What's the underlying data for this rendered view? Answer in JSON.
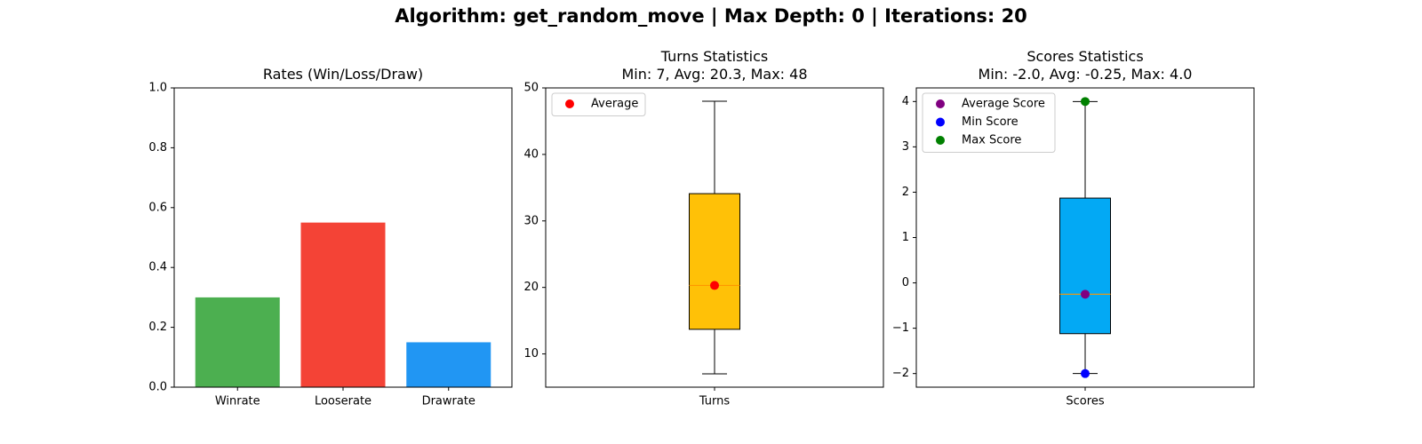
{
  "figure_title": "Algorithm: get_random_move | Max Depth: 0 | Iterations: 20",
  "colors": {
    "winrate": "#4caf50",
    "looserate": "#f44336",
    "drawrate": "#2196f3",
    "turns_box": "#ffc107",
    "scores_box": "#03a9f4",
    "median_line": "#ff9800",
    "average_marker": "#ff0000",
    "average_score_marker": "#800080",
    "min_score_marker": "#0000ff",
    "max_score_marker": "#008000"
  },
  "chart_data": [
    {
      "type": "bar",
      "title": "Rates (Win/Loss/Draw)",
      "categories": [
        "Winrate",
        "Looserate",
        "Drawrate"
      ],
      "values": [
        0.3,
        0.55,
        0.15
      ],
      "bar_colors": [
        "#4caf50",
        "#f44336",
        "#2196f3"
      ],
      "ylim": [
        0,
        1.0
      ],
      "yticks": [
        0.0,
        0.2,
        0.4,
        0.6,
        0.8,
        1.0
      ],
      "ytick_labels": [
        "0.0",
        "0.2",
        "0.4",
        "0.6",
        "0.8",
        "1.0"
      ],
      "grid": false
    },
    {
      "type": "box",
      "title": "Turns Statistics",
      "subtitle": "Min: 7, Avg: 20.3, Max: 48",
      "category": "Turns",
      "box": {
        "whisker_low": 7,
        "q1": 13.7,
        "median": 20.3,
        "q3": 34.1,
        "whisker_high": 48
      },
      "markers": [
        {
          "name": "Average",
          "value": 20.3,
          "color": "#ff0000"
        }
      ],
      "ylim": [
        5,
        50
      ],
      "yticks": [
        10,
        20,
        30,
        40,
        50
      ],
      "ytick_labels": [
        "10",
        "20",
        "30",
        "40",
        "50"
      ],
      "legend": [
        "Average"
      ],
      "legend_position": "upper-left",
      "box_color": "#ffc107",
      "grid": false
    },
    {
      "type": "box",
      "title": "Scores Statistics",
      "subtitle": "Min: -2.0, Avg: -0.25, Max: 4.0",
      "category": "Scores",
      "box": {
        "whisker_low": -2.0,
        "q1": -1.12,
        "median": -0.25,
        "q3": 1.87,
        "whisker_high": 4.0
      },
      "markers": [
        {
          "name": "Average Score",
          "value": -0.25,
          "color": "#800080"
        },
        {
          "name": "Min Score",
          "value": -2.0,
          "color": "#0000ff"
        },
        {
          "name": "Max Score",
          "value": 4.0,
          "color": "#008000"
        }
      ],
      "ylim": [
        -2.3,
        4.3
      ],
      "yticks": [
        -2,
        -1,
        0,
        1,
        2,
        3,
        4
      ],
      "ytick_labels": [
        "−2",
        "−1",
        "0",
        "1",
        "2",
        "3",
        "4"
      ],
      "legend": [
        "Average Score",
        "Min Score",
        "Max Score"
      ],
      "legend_position": "upper-left",
      "box_color": "#03a9f4",
      "grid": false
    }
  ]
}
